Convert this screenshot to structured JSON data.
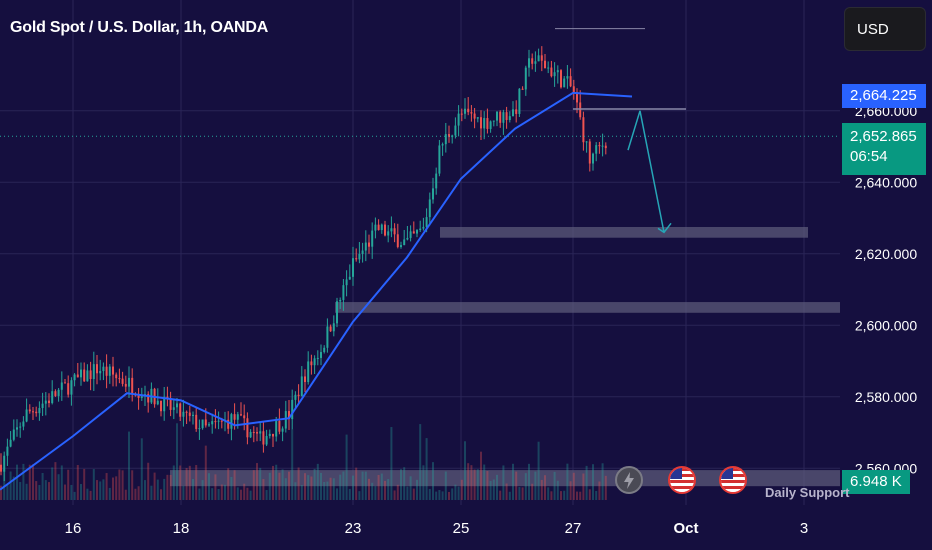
{
  "header": {
    "title": "Gold Spot / U.S. Dollar, 1h, OANDA"
  },
  "toolbar": {
    "currency_label": "USD"
  },
  "price_tags": {
    "last": "2,664.225",
    "current": "2,652.865",
    "countdown": "06:54",
    "volume": "6.948 K"
  },
  "colors": {
    "background": "#150f3f",
    "up": "#26a69a",
    "down": "#ef5350",
    "ma_line": "#2962ff",
    "arrow": "#26a6b6",
    "zone": "#5b5a7a"
  },
  "events": [
    {
      "icon": "lightning-icon"
    },
    {
      "icon": "us-flag-icon"
    },
    {
      "icon": "us-flag-icon"
    }
  ],
  "annotations": {
    "support_label": "Daily Support"
  },
  "chart_data": {
    "type": "candlestick",
    "symbol": "XAUUSD",
    "interval": "1h",
    "y_axis": {
      "ticks": [
        "2,560.000",
        "2,580.000",
        "2,600.000",
        "2,620.000",
        "2,640.000",
        "2,660.000"
      ],
      "ylim": [
        2556,
        2688
      ]
    },
    "x_axis": {
      "ticks": [
        "16",
        "18",
        "23",
        "25",
        "27",
        "Oct",
        "3"
      ]
    },
    "grid": true,
    "last_price": 2664.225,
    "current_price": 2652.865,
    "support_zones": [
      {
        "from": 2624.5,
        "to": 2627.5
      },
      {
        "from": 2603.5,
        "to": 2606.5
      },
      {
        "from": 2555,
        "to": 2559.5
      }
    ],
    "resistance_levels": [
      2660.5,
      2683
    ],
    "projection": [
      {
        "x": "27",
        "y": 2649
      },
      {
        "x": "27",
        "y": 2660
      },
      {
        "x": "28",
        "y": 2626
      }
    ],
    "moving_average": [
      {
        "x": "15",
        "y": 2554
      },
      {
        "x": "16",
        "y": 2569
      },
      {
        "x": "17",
        "y": 2581
      },
      {
        "x": "18",
        "y": 2579
      },
      {
        "x": "19",
        "y": 2572
      },
      {
        "x": "20",
        "y": 2574
      },
      {
        "x": "23",
        "y": 2601
      },
      {
        "x": "24",
        "y": 2619
      },
      {
        "x": "25",
        "y": 2641
      },
      {
        "x": "26",
        "y": 2655
      },
      {
        "x": "27",
        "y": 2665
      },
      {
        "x": "28",
        "y": 2664
      }
    ],
    "anchors": [
      {
        "x": "15",
        "y": 2561
      },
      {
        "x": "15",
        "y": 2575
      },
      {
        "x": "16",
        "y": 2584
      },
      {
        "x": "16",
        "y": 2588
      },
      {
        "x": "17",
        "y": 2584
      },
      {
        "x": "17",
        "y": 2580
      },
      {
        "x": "18",
        "y": 2575
      },
      {
        "x": "18",
        "y": 2571
      },
      {
        "x": "19",
        "y": 2574
      },
      {
        "x": "19",
        "y": 2568
      },
      {
        "x": "20",
        "y": 2575
      },
      {
        "x": "20",
        "y": 2587
      },
      {
        "x": "20",
        "y": 2594
      },
      {
        "x": "23",
        "y": 2617
      },
      {
        "x": "23",
        "y": 2627
      },
      {
        "x": "24",
        "y": 2623
      },
      {
        "x": "24",
        "y": 2627
      },
      {
        "x": "24",
        "y": 2650
      },
      {
        "x": "25",
        "y": 2659
      },
      {
        "x": "25",
        "y": 2657
      },
      {
        "x": "26",
        "y": 2660
      },
      {
        "x": "26",
        "y": 2675
      },
      {
        "x": "26",
        "y": 2672
      },
      {
        "x": "27",
        "y": 2666
      },
      {
        "x": "27",
        "y": 2646
      },
      {
        "x": "27",
        "y": 2652
      }
    ]
  }
}
